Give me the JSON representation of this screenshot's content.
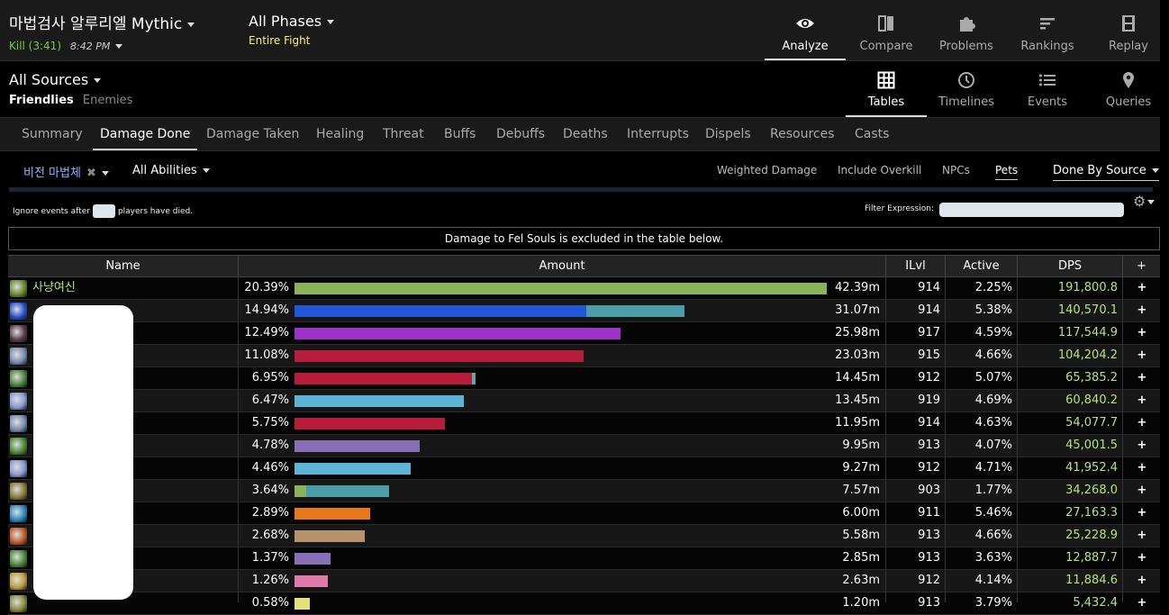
{
  "header": {
    "report_title": "마법검사 알루리엘 Mythic",
    "kill_text": "Kill (3:41)",
    "kill_time": "8:42 PM",
    "phase_title": "All Phases",
    "phase_sub": "Entire Fight",
    "nav": [
      {
        "label": "Analyze",
        "icon": "eye-icon",
        "active": true
      },
      {
        "label": "Compare",
        "icon": "compare-icon"
      },
      {
        "label": "Problems",
        "icon": "puzzle-icon"
      },
      {
        "label": "Rankings",
        "icon": "rankings-icon"
      },
      {
        "label": "Replay",
        "icon": "film-icon"
      }
    ]
  },
  "sources": {
    "title": "All Sources",
    "friendlies": "Friendlies",
    "enemies": "Enemies",
    "views": [
      {
        "label": "Tables",
        "icon": "grid-icon",
        "active": true
      },
      {
        "label": "Timelines",
        "icon": "clock-icon"
      },
      {
        "label": "Events",
        "icon": "list-icon"
      },
      {
        "label": "Queries",
        "icon": "pin-icon"
      }
    ]
  },
  "tabs": [
    "Summary",
    "Damage Done",
    "Damage Taken",
    "Healing",
    "Threat",
    "Buffs",
    "Debuffs",
    "Deaths",
    "Interrupts",
    "Dispels",
    "Resources",
    "Casts"
  ],
  "active_tab": "Damage Done",
  "filters": {
    "spell": "비전 마법체",
    "abilities": "All Abilities",
    "options": [
      "Weighted Damage",
      "Include Overkill",
      "NPCs",
      "Pets"
    ],
    "done_by": "Done By Source",
    "ignore_pre": "Ignore events after",
    "ignore_post": "players have died.",
    "filter_expression_label": "Filter Expression:"
  },
  "notice": "Damage to Fel Souls is excluded in the table below.",
  "table": {
    "headers": {
      "name": "Name",
      "amount": "Amount",
      "ilvl": "ILvl",
      "active": "Active",
      "dps": "DPS",
      "plus": "+"
    },
    "rows": [
      {
        "name": "사냥여신",
        "pct": "20.39%",
        "amount": "42.39m",
        "ilvl": "914",
        "active": "2.25%",
        "dps": "191,800.8",
        "icon_color": "#6a8a2a",
        "segments": [
          {
            "frac": 20.39,
            "color": "#8ab359"
          }
        ]
      },
      {
        "name": "",
        "pct": "14.94%",
        "amount": "31.07m",
        "ilvl": "914",
        "active": "5.38%",
        "dps": "140,570.1",
        "icon_color": "#2a4fcf",
        "segments": [
          {
            "frac": 11.18,
            "color": "#2156d9"
          },
          {
            "frac": 3.76,
            "color": "#4b9ea8"
          }
        ]
      },
      {
        "name": "",
        "pct": "12.49%",
        "amount": "25.98m",
        "ilvl": "917",
        "active": "4.59%",
        "dps": "117,544.9",
        "icon_color": "#5a3a4a",
        "segments": [
          {
            "frac": 12.49,
            "color": "#9b32c8"
          }
        ]
      },
      {
        "name": "",
        "pct": "11.08%",
        "amount": "23.03m",
        "ilvl": "915",
        "active": "4.66%",
        "dps": "104,204.2",
        "icon_color": "#7a8ab0",
        "segments": [
          {
            "frac": 11.08,
            "color": "#b71c3a"
          }
        ]
      },
      {
        "name": "",
        "pct": "6.95%",
        "amount": "14.45m",
        "ilvl": "912",
        "active": "5.07%",
        "dps": "65,385.2",
        "icon_color": "#4a8a3a",
        "segments": [
          {
            "frac": 6.78,
            "color": "#b71c3a"
          },
          {
            "frac": 0.17,
            "color": "#5aa8b8"
          }
        ]
      },
      {
        "name": "",
        "pct": "6.47%",
        "amount": "13.45m",
        "ilvl": "919",
        "active": "4.69%",
        "dps": "60,840.2",
        "icon_color": "#8a9ad0",
        "segments": [
          {
            "frac": 6.47,
            "color": "#5cb4d6"
          }
        ]
      },
      {
        "name": "",
        "pct": "5.75%",
        "amount": "11.95m",
        "ilvl": "914",
        "active": "4.63%",
        "dps": "54,077.7",
        "icon_color": "#7a8ab0",
        "segments": [
          {
            "frac": 5.75,
            "color": "#b71c3a"
          }
        ]
      },
      {
        "name": "",
        "pct": "4.78%",
        "amount": "9.95m",
        "ilvl": "913",
        "active": "4.07%",
        "dps": "45,001.5",
        "icon_color": "#4a8a3a",
        "segments": [
          {
            "frac": 4.78,
            "color": "#8870b8"
          }
        ]
      },
      {
        "name": "",
        "pct": "4.46%",
        "amount": "9.27m",
        "ilvl": "912",
        "active": "4.71%",
        "dps": "41,952.4",
        "icon_color": "#8a9ad0",
        "segments": [
          {
            "frac": 4.46,
            "color": "#5cb4d6"
          }
        ]
      },
      {
        "name": "",
        "pct": "3.64%",
        "amount": "7.57m",
        "ilvl": "903",
        "active": "1.77%",
        "dps": "34,268.0",
        "icon_color": "#8a7a3a",
        "segments": [
          {
            "frac": 0.45,
            "color": "#8ab359"
          },
          {
            "frac": 3.19,
            "color": "#4b9ea8"
          }
        ]
      },
      {
        "name": "",
        "pct": "2.89%",
        "amount": "6.00m",
        "ilvl": "911",
        "active": "5.46%",
        "dps": "27,163.3",
        "icon_color": "#2a8ac0",
        "segments": [
          {
            "frac": 2.89,
            "color": "#e6781e"
          }
        ]
      },
      {
        "name": "",
        "pct": "2.68%",
        "amount": "5.58m",
        "ilvl": "913",
        "active": "4.66%",
        "dps": "25,228.9",
        "icon_color": "#c05a2a",
        "segments": [
          {
            "frac": 2.68,
            "color": "#b8926a"
          }
        ]
      },
      {
        "name": "",
        "pct": "1.37%",
        "amount": "2.85m",
        "ilvl": "913",
        "active": "3.63%",
        "dps": "12,887.7",
        "icon_color": "#4a8a3a",
        "segments": [
          {
            "frac": 1.37,
            "color": "#8870b8"
          }
        ]
      },
      {
        "name": "",
        "pct": "1.26%",
        "amount": "2.63m",
        "ilvl": "912",
        "active": "4.14%",
        "dps": "11,884.6",
        "icon_color": "#c0a03a",
        "segments": [
          {
            "frac": 1.26,
            "color": "#e07aa8"
          }
        ]
      },
      {
        "name": "",
        "pct": "0.58%",
        "amount": "1.20m",
        "ilvl": "913",
        "active": "3.79%",
        "dps": "5,432.4",
        "icon_color": "#8a8a3a",
        "segments": [
          {
            "frac": 0.58,
            "color": "#e6e07a"
          }
        ]
      }
    ]
  }
}
